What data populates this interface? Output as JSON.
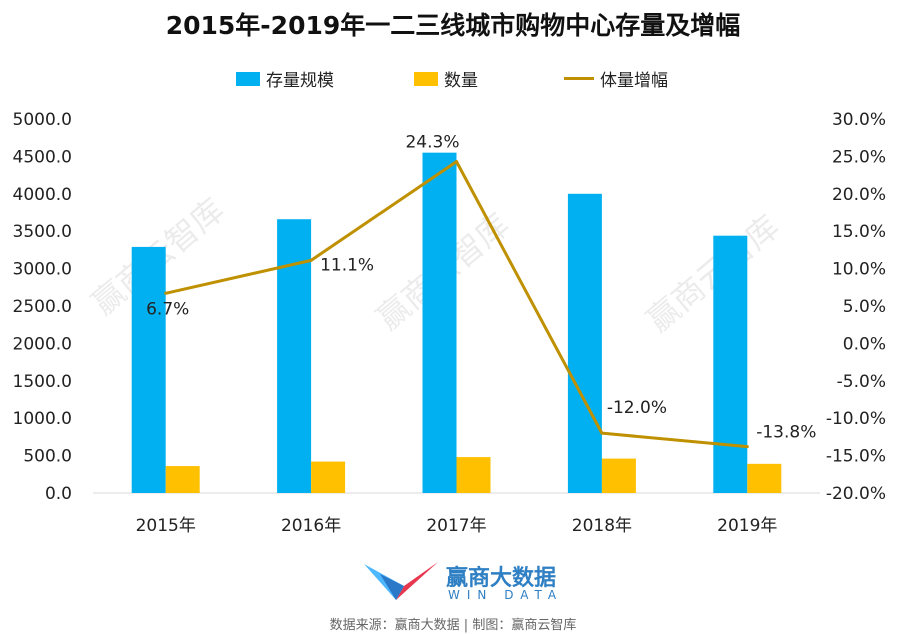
{
  "header": {
    "title": "2015年-2019年一二三线城市购物中心存量及增幅"
  },
  "legend": {
    "items": [
      {
        "label": "存量规模",
        "color": "#00B0F0"
      },
      {
        "label": "数量",
        "color": "#FFC000"
      },
      {
        "label": "体量增幅",
        "color": "#BF9000"
      }
    ]
  },
  "watermark": "赢商云智库",
  "logo": {
    "name": "赢商大数据",
    "sub": "WIN DATA"
  },
  "footer": {
    "source": "数据来源：赢商大数据 | 制图：赢商云智库"
  },
  "chart_data": {
    "type": "bar",
    "title": "2015年-2019年一二三线城市购物中心存量及增幅",
    "categories": [
      "2015年",
      "2016年",
      "2017年",
      "2018年",
      "2019年"
    ],
    "series": [
      {
        "name": "存量规模",
        "type": "bar",
        "axis": "left",
        "color": "#00B0F0",
        "values": [
          3290,
          3660,
          4550,
          4000,
          3440
        ]
      },
      {
        "name": "数量",
        "type": "bar",
        "axis": "left",
        "color": "#FFC000",
        "values": [
          360,
          420,
          480,
          460,
          390
        ]
      },
      {
        "name": "体量增幅",
        "type": "line",
        "axis": "right",
        "color": "#BF9000",
        "values": [
          6.7,
          11.1,
          24.3,
          -12.0,
          -13.8
        ],
        "labels": [
          "6.7%",
          "11.1%",
          "24.3%",
          "-12.0%",
          "-13.8%"
        ]
      }
    ],
    "y_left": {
      "ylim": [
        0,
        5000
      ],
      "ticks": [
        "0.0",
        "500.0",
        "1000.0",
        "1500.0",
        "2000.0",
        "2500.0",
        "3000.0",
        "3500.0",
        "4000.0",
        "4500.0",
        "5000.0"
      ]
    },
    "y_right": {
      "ylim": [
        -20,
        30
      ],
      "ticks": [
        "-20.0%",
        "-15.0%",
        "-10.0%",
        "-5.0%",
        "0.0%",
        "5.0%",
        "10.0%",
        "15.0%",
        "20.0%",
        "25.0%",
        "30.0%"
      ]
    },
    "legend_position": "top",
    "grid": false
  }
}
